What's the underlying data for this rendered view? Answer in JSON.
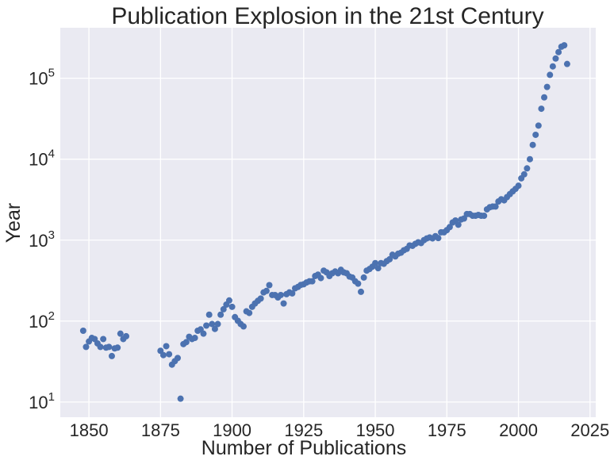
{
  "chart_data": {
    "type": "scatter",
    "title": "Publication Explosion in the 21st Century",
    "xlabel": "Number of Publications",
    "ylabel": "Year",
    "xlim": [
      1840,
      2027
    ],
    "ylim": [
      6.5,
      420000
    ],
    "yscale": "log",
    "grid": true,
    "colors": {
      "plot_bg": "#EAEAF2",
      "grid": "#FFFFFF",
      "marker": "#4C72B0"
    },
    "x_ticks": [
      1850,
      1875,
      1900,
      1925,
      1950,
      1975,
      2000,
      2025
    ],
    "x_tick_labels": [
      "1850",
      "1875",
      "1900",
      "1925",
      "1950",
      "1975",
      "2000",
      "2025"
    ],
    "y_ticks": [
      {
        "value": 10,
        "base": "10",
        "exp": "1"
      },
      {
        "value": 100,
        "base": "10",
        "exp": "2"
      },
      {
        "value": 1000,
        "base": "10",
        "exp": "3"
      },
      {
        "value": 10000,
        "base": "10",
        "exp": "4"
      },
      {
        "value": 100000,
        "base": "10",
        "exp": "5"
      }
    ],
    "points": [
      [
        1848,
        76
      ],
      [
        1849,
        48
      ],
      [
        1850,
        56
      ],
      [
        1851,
        62
      ],
      [
        1852,
        60
      ],
      [
        1853,
        53
      ],
      [
        1854,
        48
      ],
      [
        1855,
        60
      ],
      [
        1856,
        47
      ],
      [
        1857,
        48
      ],
      [
        1858,
        37
      ],
      [
        1859,
        46
      ],
      [
        1860,
        47
      ],
      [
        1861,
        70
      ],
      [
        1862,
        60
      ],
      [
        1863,
        65
      ],
      [
        1875,
        43
      ],
      [
        1876,
        38
      ],
      [
        1877,
        49
      ],
      [
        1878,
        39
      ],
      [
        1879,
        29
      ],
      [
        1880,
        32
      ],
      [
        1881,
        35
      ],
      [
        1882,
        11
      ],
      [
        1883,
        52
      ],
      [
        1884,
        55
      ],
      [
        1885,
        64
      ],
      [
        1886,
        60
      ],
      [
        1887,
        62
      ],
      [
        1888,
        76
      ],
      [
        1889,
        79
      ],
      [
        1890,
        70
      ],
      [
        1891,
        88
      ],
      [
        1892,
        120
      ],
      [
        1893,
        92
      ],
      [
        1894,
        80
      ],
      [
        1895,
        92
      ],
      [
        1896,
        120
      ],
      [
        1897,
        140
      ],
      [
        1898,
        160
      ],
      [
        1899,
        180
      ],
      [
        1900,
        150
      ],
      [
        1901,
        112
      ],
      [
        1902,
        101
      ],
      [
        1903,
        92
      ],
      [
        1904,
        86
      ],
      [
        1905,
        132
      ],
      [
        1906,
        126
      ],
      [
        1907,
        150
      ],
      [
        1908,
        165
      ],
      [
        1909,
        178
      ],
      [
        1910,
        190
      ],
      [
        1911,
        226
      ],
      [
        1912,
        236
      ],
      [
        1913,
        278
      ],
      [
        1914,
        210
      ],
      [
        1915,
        210
      ],
      [
        1916,
        196
      ],
      [
        1917,
        210
      ],
      [
        1918,
        165
      ],
      [
        1919,
        215
      ],
      [
        1920,
        226
      ],
      [
        1921,
        220
      ],
      [
        1922,
        254
      ],
      [
        1923,
        264
      ],
      [
        1924,
        280
      ],
      [
        1925,
        285
      ],
      [
        1926,
        300
      ],
      [
        1927,
        310
      ],
      [
        1928,
        310
      ],
      [
        1929,
        360
      ],
      [
        1930,
        375
      ],
      [
        1931,
        340
      ],
      [
        1932,
        420
      ],
      [
        1933,
        400
      ],
      [
        1934,
        360
      ],
      [
        1935,
        390
      ],
      [
        1936,
        410
      ],
      [
        1937,
        390
      ],
      [
        1938,
        430
      ],
      [
        1939,
        400
      ],
      [
        1940,
        390
      ],
      [
        1941,
        355
      ],
      [
        1942,
        345
      ],
      [
        1943,
        310
      ],
      [
        1944,
        290
      ],
      [
        1945,
        230
      ],
      [
        1946,
        345
      ],
      [
        1947,
        420
      ],
      [
        1948,
        440
      ],
      [
        1949,
        470
      ],
      [
        1950,
        520
      ],
      [
        1951,
        450
      ],
      [
        1952,
        520
      ],
      [
        1953,
        510
      ],
      [
        1954,
        550
      ],
      [
        1955,
        580
      ],
      [
        1956,
        660
      ],
      [
        1957,
        630
      ],
      [
        1958,
        680
      ],
      [
        1959,
        700
      ],
      [
        1960,
        750
      ],
      [
        1961,
        780
      ],
      [
        1962,
        860
      ],
      [
        1963,
        850
      ],
      [
        1964,
        900
      ],
      [
        1965,
        940
      ],
      [
        1966,
        920
      ],
      [
        1967,
        1000
      ],
      [
        1968,
        1050
      ],
      [
        1969,
        1080
      ],
      [
        1970,
        1050
      ],
      [
        1971,
        1120
      ],
      [
        1972,
        1060
      ],
      [
        1973,
        1250
      ],
      [
        1974,
        1250
      ],
      [
        1975,
        1330
      ],
      [
        1976,
        1450
      ],
      [
        1977,
        1650
      ],
      [
        1978,
        1750
      ],
      [
        1979,
        1550
      ],
      [
        1980,
        1800
      ],
      [
        1981,
        1850
      ],
      [
        1982,
        2100
      ],
      [
        1983,
        2100
      ],
      [
        1984,
        2000
      ],
      [
        1985,
        2000
      ],
      [
        1986,
        2050
      ],
      [
        1987,
        2000
      ],
      [
        1988,
        2000
      ],
      [
        1989,
        2400
      ],
      [
        1990,
        2550
      ],
      [
        1991,
        2600
      ],
      [
        1992,
        2600
      ],
      [
        1993,
        3000
      ],
      [
        1994,
        3200
      ],
      [
        1995,
        3100
      ],
      [
        1996,
        3400
      ],
      [
        1997,
        3700
      ],
      [
        1998,
        4000
      ],
      [
        1999,
        4300
      ],
      [
        2000,
        4700
      ],
      [
        2001,
        5800
      ],
      [
        2002,
        6500
      ],
      [
        2003,
        7700
      ],
      [
        2004,
        10000
      ],
      [
        2005,
        15000
      ],
      [
        2006,
        20000
      ],
      [
        2007,
        26000
      ],
      [
        2008,
        42000
      ],
      [
        2009,
        58000
      ],
      [
        2010,
        78000
      ],
      [
        2011,
        110000
      ],
      [
        2012,
        140000
      ],
      [
        2013,
        175000
      ],
      [
        2014,
        210000
      ],
      [
        2015,
        245000
      ],
      [
        2016,
        255000
      ],
      [
        2017,
        150000
      ]
    ]
  }
}
